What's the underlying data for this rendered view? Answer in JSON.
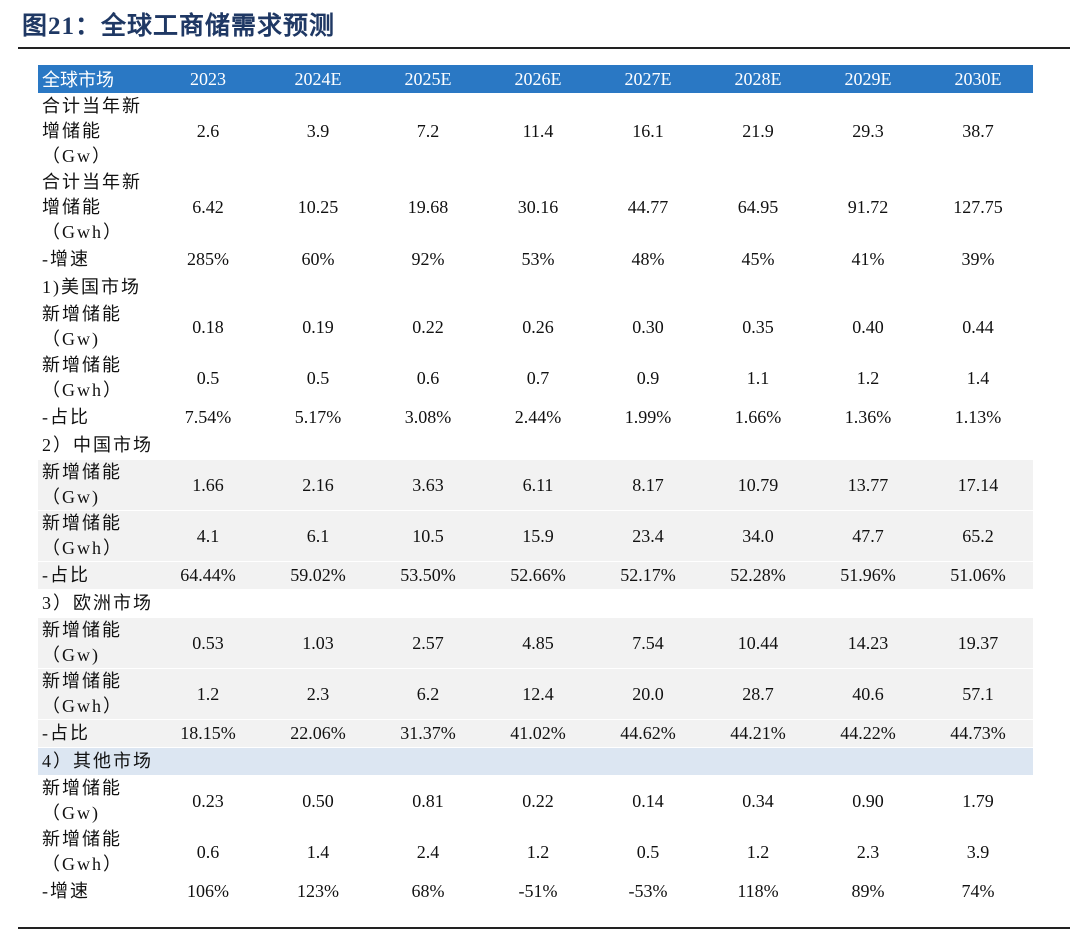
{
  "title": "图21：全球工商储需求预测",
  "table": {
    "header": [
      "全球市场",
      "2023",
      "2024E",
      "2025E",
      "2026E",
      "2027E",
      "2028E",
      "2029E",
      "2030E"
    ],
    "rows": [
      {
        "label": [
          "合计当年新",
          "增储能",
          "（Gw）"
        ],
        "values": [
          "2.6",
          "3.9",
          "7.2",
          "11.4",
          "16.1",
          "21.9",
          "29.3",
          "38.7"
        ]
      },
      {
        "label": [
          "合计当年新",
          "增储能",
          "（Gwh）"
        ],
        "values": [
          "6.42",
          "10.25",
          "19.68",
          "30.16",
          "44.77",
          "64.95",
          "91.72",
          "127.75"
        ]
      },
      {
        "label": [
          "-增速"
        ],
        "values": [
          "285%",
          "60%",
          "92%",
          "53%",
          "48%",
          "45%",
          "41%",
          "39%"
        ]
      },
      {
        "label": [
          "1)美国市场"
        ]
      },
      {
        "label": [
          "新增储能",
          "（Gw)"
        ],
        "values": [
          "0.18",
          "0.19",
          "0.22",
          "0.26",
          "0.30",
          "0.35",
          "0.40",
          "0.44"
        ]
      },
      {
        "label": [
          "新增储能",
          "（Gwh）"
        ],
        "values": [
          "0.5",
          "0.5",
          "0.6",
          "0.7",
          "0.9",
          "1.1",
          "1.2",
          "1.4"
        ]
      },
      {
        "label": [
          "-占比"
        ],
        "values": [
          "7.54%",
          "5.17%",
          "3.08%",
          "2.44%",
          "1.99%",
          "1.66%",
          "1.36%",
          "1.13%"
        ]
      },
      {
        "label": [
          "2）中国市场"
        ]
      },
      {
        "label": [
          "新增储能",
          "（Gw)"
        ],
        "values": [
          "1.66",
          "2.16",
          "3.63",
          "6.11",
          "8.17",
          "10.79",
          "13.77",
          "17.14"
        ],
        "shade": "#f2f2f2"
      },
      {
        "label": [
          "新增储能",
          "（Gwh）"
        ],
        "values": [
          "4.1",
          "6.1",
          "10.5",
          "15.9",
          "23.4",
          "34.0",
          "47.7",
          "65.2"
        ],
        "shade": "#f2f2f2"
      },
      {
        "label": [
          "-占比"
        ],
        "values": [
          "64.44%",
          "59.02%",
          "53.50%",
          "52.66%",
          "52.17%",
          "52.28%",
          "51.96%",
          "51.06%"
        ],
        "shade": "#f2f2f2"
      },
      {
        "label": [
          "3）欧洲市场"
        ]
      },
      {
        "label": [
          "新增储能",
          "（Gw)"
        ],
        "values": [
          "0.53",
          "1.03",
          "2.57",
          "4.85",
          "7.54",
          "10.44",
          "14.23",
          "19.37"
        ],
        "shade": "#f2f2f2"
      },
      {
        "label": [
          "新增储能",
          "（Gwh）"
        ],
        "values": [
          "1.2",
          "2.3",
          "6.2",
          "12.4",
          "20.0",
          "28.7",
          "40.6",
          "57.1"
        ],
        "shade": "#f2f2f2"
      },
      {
        "label": [
          "-占比"
        ],
        "values": [
          "18.15%",
          "22.06%",
          "31.37%",
          "41.02%",
          "44.62%",
          "44.21%",
          "44.22%",
          "44.73%"
        ],
        "shade": "#f2f2f2"
      },
      {
        "label": [
          "4）其他市场"
        ],
        "shade": "#dce6f2"
      },
      {
        "label": [
          "新增储能",
          "（Gw)"
        ],
        "values": [
          "0.23",
          "0.50",
          "0.81",
          "0.22",
          "0.14",
          "0.34",
          "0.90",
          "1.79"
        ]
      },
      {
        "label": [
          "新增储能",
          "（Gwh）"
        ],
        "values": [
          "0.6",
          "1.4",
          "2.4",
          "1.2",
          "0.5",
          "1.2",
          "2.3",
          "3.9"
        ]
      },
      {
        "label": [
          "-增速"
        ],
        "values": [
          "106%",
          "123%",
          "68%",
          "-51%",
          "-53%",
          "118%",
          "89%",
          "74%"
        ]
      }
    ]
  }
}
